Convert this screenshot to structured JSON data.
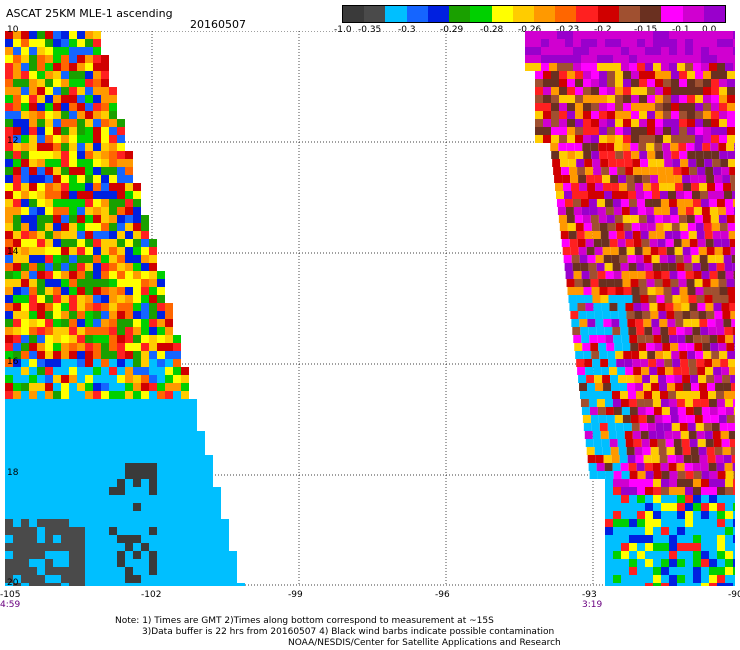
{
  "header": {
    "title": "ASCAT 25KM MLE-1 ascending",
    "date": "20160507"
  },
  "legend": {
    "ticks": [
      "-1.0",
      "-0.35",
      "-0.3",
      "-0.29",
      "-0.28",
      "-0.26",
      "-0.23",
      "-0.2",
      "-0.15",
      "-0.1",
      "0.0"
    ],
    "colors": [
      "#3a3a3a",
      "#4a4a4a",
      "#00bfff",
      "#1565ff",
      "#0020e0",
      "#1aa000",
      "#00d000",
      "#ffff00",
      "#ffcc00",
      "#ff9900",
      "#ff6600",
      "#ff2020",
      "#d00000",
      "#a05030",
      "#6a3020",
      "#ff00ff",
      "#d000d0",
      "#9900cc"
    ]
  },
  "map": {
    "lat_labels": [
      "10",
      "12",
      "14",
      "16",
      "18",
      "20"
    ],
    "lon_labels": [
      "-105",
      "-102",
      "-99",
      "-96",
      "-93",
      "-90"
    ],
    "swath_times": [
      "4:59",
      "3:19"
    ]
  },
  "notes": [
    "Note: 1) Times are GMT 2)Times along bottom correspond to measurement at ~15S",
    "3)Data buffer is 22 hrs from 20160507 4) Black wind barbs indicate possible contamination",
    "NOAA/NESDIS/Center for Satellite Applications and Research"
  ]
}
